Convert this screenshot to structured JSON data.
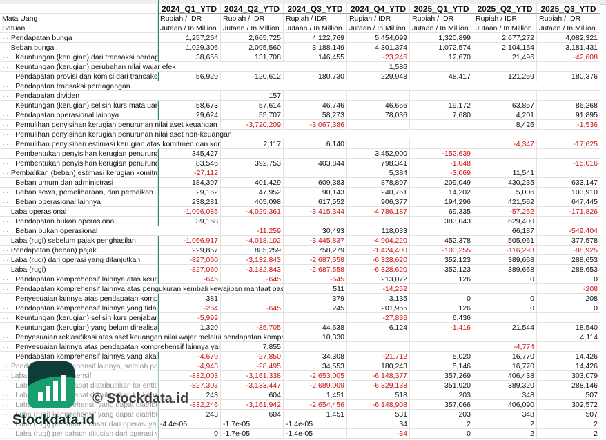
{
  "columns": [
    "2024_Q1_YTD",
    "2024_Q2_YTD",
    "2024_Q3_YTD",
    "2024_Q4_YTD",
    "2025_Q1_YTD",
    "2025_Q2_YTD",
    "2025_Q3_YTD"
  ],
  "rows": [
    {
      "label": "Mata Uang",
      "cells": [
        "Rupiah / IDR",
        "Rupiah / IDR",
        "Rupiah / IDR",
        "Rupiah / IDR",
        "Rupiah / IDR",
        "Rupiah / IDR",
        "Rupiah / IDR"
      ]
    },
    {
      "label": "Satuan",
      "cells": [
        "Jutaan / In Million",
        "Jutaan / In Million",
        "Jutaan / In Million",
        "Jutaan / In Million",
        "Jutaan / In Million",
        "Jutaan / In Million",
        "Jutaan / In Million"
      ]
    },
    {
      "label": "· · Pendapatan bunga",
      "cells": [
        "1,257,264",
        "2,665,725",
        "4,122,769",
        "5,454,099",
        "1,320,899",
        "2,677,272",
        "4,082,321"
      ]
    },
    {
      "label": "· · Beban bunga",
      "cells": [
        "1,029,306",
        "2,095,560",
        "3,188,149",
        "4,301,374",
        "1,072,574",
        "2,104,154",
        "3,181,431"
      ]
    },
    {
      "label": "· · · Keuntungan (kerugian) dari transaksi perdagangan",
      "cells": [
        "38,656",
        "131,708",
        "146,455",
        "-23,246",
        "12,670",
        "21,496",
        "-42,608"
      ]
    },
    {
      "label": "· · · Keuntungan (kerugian) perubahan nilai wajar efek",
      "cells": [
        null,
        null,
        null,
        "1,586",
        null,
        null,
        null
      ]
    },
    {
      "label": "· · · Pendapatan provisi dan komisi dari transaksi lainnya",
      "cells": [
        "56,929",
        "120,612",
        "180,730",
        "229,948",
        "48,417",
        "121,259",
        "180,376"
      ]
    },
    {
      "label": "· · · Pendapatan transaksi perdagangan",
      "cells": [
        null,
        null,
        null,
        null,
        null,
        null,
        null
      ]
    },
    {
      "label": "· · · Pendapatan dividen",
      "cells": [
        null,
        "157",
        null,
        null,
        null,
        null,
        null
      ]
    },
    {
      "label": "· · · Keuntungan (kerugian) selisih kurs mata uang asing",
      "cells": [
        "58,673",
        "57,614",
        "46,746",
        "46,656",
        "19,172",
        "63,857",
        "86,268"
      ]
    },
    {
      "label": "· · · Pendapatan operasional lainnya",
      "cells": [
        "29,624",
        "55,707",
        "58,273",
        "78,036",
        "7,680",
        "4,201",
        "91,895"
      ]
    },
    {
      "label": "· · · Pemulihan penyisihan kerugian penurunan nilai aset keuangan",
      "cells": [
        null,
        "-3,720,209",
        "-3,067,386",
        null,
        null,
        "8,426",
        "-1,536"
      ]
    },
    {
      "label": "· · · Pemulihan penyisihan kerugian penurunan nilai aset non-keuangan",
      "cells": [
        null,
        null,
        null,
        null,
        null,
        null,
        null
      ]
    },
    {
      "label": "· · · Pemulihan penyisihan estimasi kerugian atas komitmen dan kontinjensi",
      "cells": [
        null,
        "2,117",
        "6,140",
        null,
        null,
        "-4,347",
        "-17,625"
      ]
    },
    {
      "label": "· · · Pembentukan penyisihan kerugian penurunan nilai aset keuangan",
      "cells": [
        "345,427",
        null,
        null,
        "3,452,900",
        "-152,639",
        null,
        null
      ]
    },
    {
      "label": "· · · Pembentukan penyisihan kerugian penurunan nilai aset non-keuangan",
      "cells": [
        "83,546",
        "392,753",
        "403,844",
        "798,341",
        "-1,048",
        null,
        "-15,016"
      ]
    },
    {
      "label": "· · Pembalikan (beban) estimasi kerugian komitmen dan kontinjensi",
      "cells": [
        "-27,112",
        null,
        null,
        "5,384",
        "-3,069",
        "11,541",
        null
      ]
    },
    {
      "label": "· · · Beban umum dan administrasi",
      "cells": [
        "184,397",
        "401,429",
        "609,383",
        "878,897",
        "209,049",
        "430,235",
        "633,147"
      ]
    },
    {
      "label": "· · · Beban sewa, pemeliharaan, dan perbaikan",
      "cells": [
        "29,162",
        "47,952",
        "90,143",
        "240,761",
        "14,202",
        "5,006",
        "103,910"
      ]
    },
    {
      "label": "· · · Beban operasional lainnya",
      "cells": [
        "238,281",
        "405,098",
        "617,552",
        "906,377",
        "194,296",
        "421,562",
        "647,445"
      ]
    },
    {
      "label": "· · Laba operasional",
      "cells": [
        "-1,096,085",
        "-4,029,361",
        "-3,415,344",
        "-4,786,187",
        "69,335",
        "-57,252",
        "-171,826"
      ]
    },
    {
      "label": "· · · Pendapatan bukan operasional",
      "cells": [
        "39,168",
        null,
        null,
        null,
        "383,043",
        "629,400",
        null
      ]
    },
    {
      "label": "· · · Beban bukan operasional",
      "cells": [
        null,
        "-11,259",
        "30,493",
        "118,033",
        null,
        "66,187",
        "-549,404"
      ]
    },
    {
      "label": "· · Laba (rugi) sebelum pajak penghasilan",
      "cells": [
        "-1,056,917",
        "-4,018,102",
        "-3,445,837",
        "-4,904,220",
        "452,378",
        "505,961",
        "377,578"
      ]
    },
    {
      "label": "· · Pendapatan (beban) pajak",
      "cells": [
        "229,857",
        "885,259",
        "758,279",
        "-1,424,400",
        "-100,255",
        "-116,293",
        "-88,925"
      ]
    },
    {
      "label": "· · Laba (rugi) dari operasi yang dilanjutkan",
      "cells": [
        "-827,060",
        "-3,132,843",
        "-2,687,558",
        "-6,328,620",
        "352,123",
        "389,668",
        "288,653"
      ]
    },
    {
      "label": "· · Laba (rugi)",
      "cells": [
        "-827,060",
        "-3,132,843",
        "-2,687,558",
        "-6,328,620",
        "352,123",
        "389,668",
        "288,653"
      ]
    },
    {
      "label": "· · · Pendapatan komprehensif lainnya atas keuntungan",
      "cells": [
        "-645",
        "-645",
        "-645",
        "213,072",
        "126",
        "0",
        "0"
      ]
    },
    {
      "label": "· · · Pendapatan komprehensif lainnya atas pengukuran kembali kewajiban manfaat pasti,",
      "cells": [
        null,
        null,
        "511",
        "-14,252",
        null,
        null,
        "-208"
      ]
    },
    {
      "label": "· · · Penyesuaian lainnya atas pendapatan komprehensif",
      "cells": [
        "381",
        null,
        "379",
        "3,135",
        "0",
        "0",
        "208"
      ]
    },
    {
      "label": "· · · Pendapatan komprehensif lainnya yang tidak akan",
      "cells": [
        "-264",
        "-645",
        "245",
        "201,955",
        "126",
        "0",
        "0"
      ]
    },
    {
      "label": "· · · Keuntungan (kerugian) selisih kurs penjabaran",
      "cells": [
        "-5,999",
        null,
        null,
        "-27,836",
        "6,436",
        null,
        null
      ]
    },
    {
      "label": "· · · Keuntungan (kerugian) yang belum direalisasi",
      "cells": [
        "1,320",
        "-35,705",
        "44,638",
        "6,124",
        "-1,416",
        "21,544",
        "18,540"
      ]
    },
    {
      "label": "· · · Penyesuaian reklasifikasi atas aset keuangan nilai wajar melalui pendapatan kompreh",
      "cells": [
        null,
        null,
        "10,330",
        null,
        null,
        null,
        "4,114"
      ]
    },
    {
      "label": "· · · Penyesuaian lainnya atas pendapatan komprehensif lainnya yang",
      "cells": [
        null,
        "7,855",
        null,
        null,
        null,
        "-4,774",
        null
      ]
    },
    {
      "label": "· · · Pendapatan komprehensif lainnya yang akan",
      "cells": [
        "-4,679",
        "-27,850",
        "34,308",
        "-21,712",
        "5,020",
        "16,770",
        "14,426"
      ]
    },
    {
      "label": "· · Pendapatan komprehensif lainnya, setelah pajak",
      "cells": [
        "-4,943",
        "-28,495",
        "34,553",
        "180,243",
        "5,146",
        "16,770",
        "14,426"
      ]
    },
    {
      "label": "· · Laba (rugi) komprehensif",
      "cells": [
        "-832,003",
        "-3,161,338",
        "-2,653,005",
        "-6,148,377",
        "357,269",
        "406,438",
        "303,079"
      ]
    },
    {
      "label": "· · · Laba (rugi) yang dapat diatribusikan ke entitas",
      "cells": [
        "-827,303",
        "-3,133,447",
        "-2,689,009",
        "-6,329,138",
        "351,920",
        "389,320",
        "288,146"
      ]
    },
    {
      "label": "· · · Laba (rugi) yang dapat diatribusikan ke kepentingan",
      "cells": [
        "243",
        "604",
        "1,451",
        "518",
        "203",
        "348",
        "507"
      ]
    },
    {
      "label": "· · · Laba (rugi) komprehensif yang dapat diatribusik",
      "cells": [
        "-832,246",
        "-3,161,942",
        "-2,654,456",
        "-6,148,908",
        "357,066",
        "406,090",
        "302,572"
      ]
    },
    {
      "label": "· · · Laba (rugi) komprehensif yang dapat diatribusik",
      "cells": [
        "243",
        "604",
        "1,451",
        "531",
        "203",
        "348",
        "507"
      ]
    },
    {
      "label": "· · · Laba (rugi) per saham dasar dari operasi yang",
      "cells": [
        "-4.4e-06",
        "-1.7e-05",
        "-1.4e-05",
        "34",
        "2",
        "2",
        "2"
      ]
    },
    {
      "label": "· · · Laba (rugi) per saham dilusian dari operasi yang",
      "cells": [
        "0",
        "-1.7e-05",
        "-1.4e-05",
        "-34",
        "0",
        "2",
        "2"
      ]
    }
  ],
  "watermark": "© Stockdata.id",
  "logo_text": "Stockdata.id"
}
